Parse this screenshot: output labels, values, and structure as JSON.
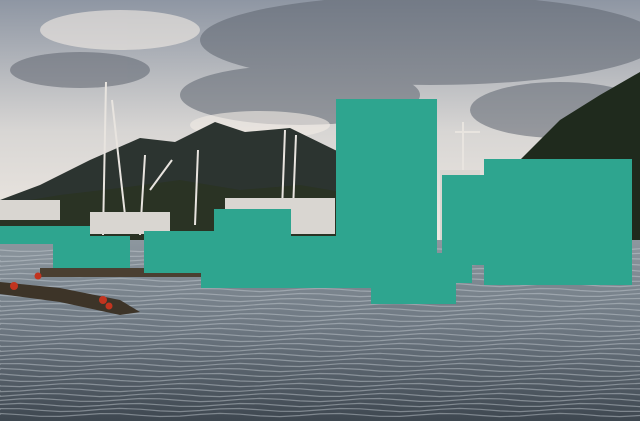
{
  "scene": {
    "subject": "harbor-with-fishing-boats",
    "colors": {
      "sky_top": "#8e96a3",
      "sky_bottom": "#e9e6e2",
      "cloud": "#5e6570",
      "mountain": "#2c3430",
      "forest": "#1f2a1d",
      "water_top": "#9aa3ab",
      "water_bottom": "#46505a",
      "dock": "#3d3428",
      "buoy": "#c2341f",
      "mask": "#2ea58f"
    },
    "mask_regions": 10
  }
}
